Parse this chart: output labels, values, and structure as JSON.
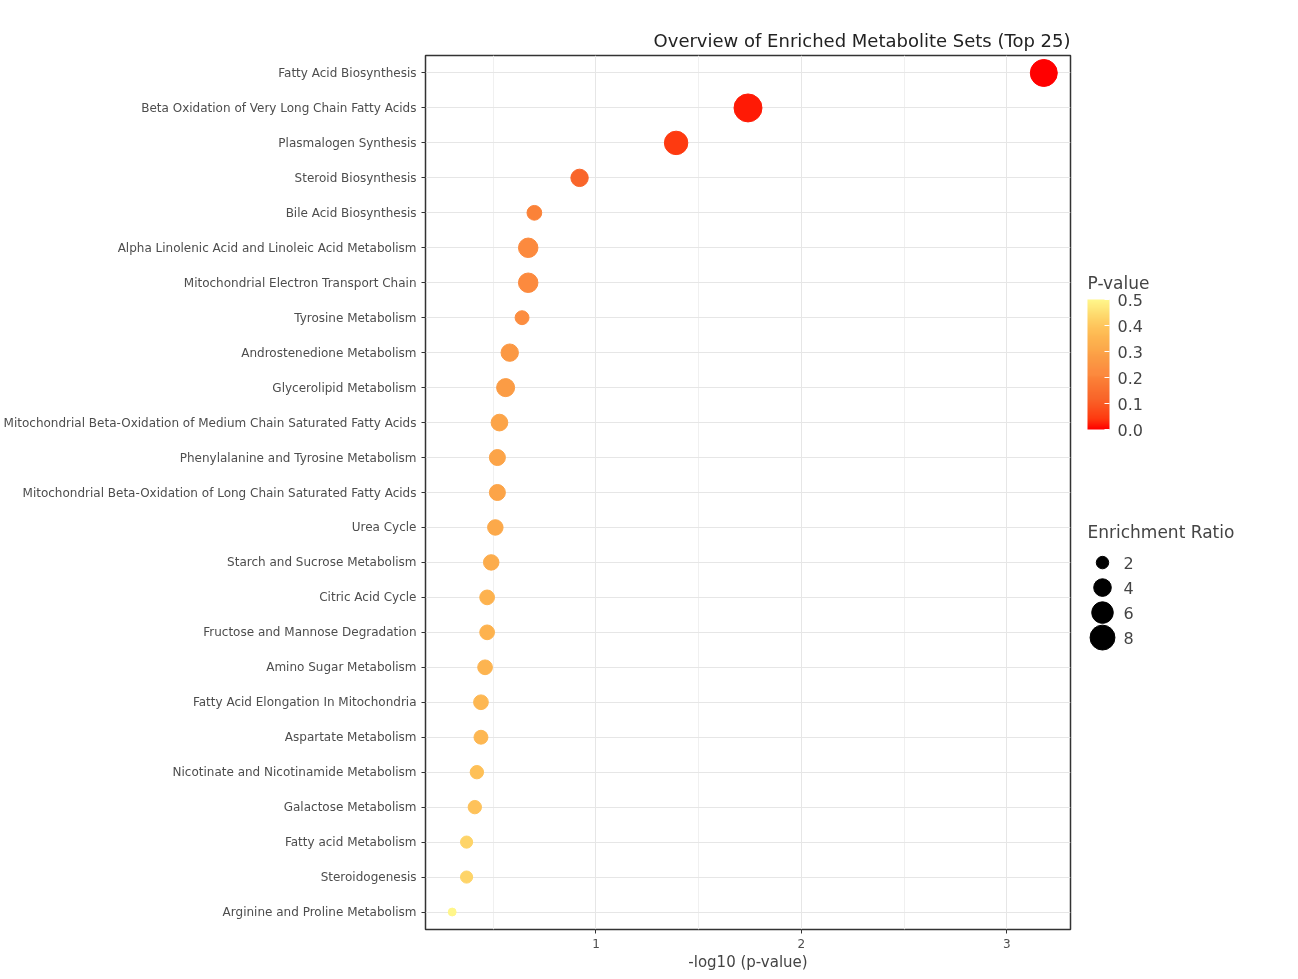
{
  "chart_data": {
    "type": "bubble",
    "orientation": "horizontal",
    "title": "Overview of Enriched Metabolite Sets (Top 25)",
    "xlabel": "-log10 (p-value)",
    "legend_title": "Enrichment Ratio",
    "clabel": "P-value",
    "categories": [
      "Fatty Acid Biosynthesis",
      "Beta Oxidation of Very Long Chain Fatty Acids",
      "Plasmalogen Synthesis",
      "Steroid Biosynthesis",
      "Bile Acid Biosynthesis",
      "Alpha Linolenic Acid and Linoleic Acid Metabolism",
      "Mitochondrial Electron Transport Chain",
      "Tyrosine Metabolism",
      "Androstenedione Metabolism",
      "Glycerolipid Metabolism",
      "Mitochondrial Beta-Oxidation of Medium Chain Saturated Fatty Acids",
      "Phenylalanine and Tyrosine Metabolism",
      "Mitochondrial Beta-Oxidation of Long Chain Saturated Fatty Acids",
      "Urea Cycle",
      "Starch and Sucrose Metabolism",
      "Citric Acid Cycle",
      "Fructose and Mannose Degradation",
      "Amino Sugar Metabolism",
      "Fatty Acid Elongation In Mitochondria",
      "Aspartate Metabolism",
      "Nicotinate and Nicotinamide Metabolism",
      "Galactose Metabolism",
      "Fatty acid Metabolism",
      "Steroidogenesis",
      "Arginine and Proline Metabolism"
    ],
    "values": [
      3.18,
      1.74,
      1.39,
      0.92,
      0.7,
      0.67,
      0.67,
      0.64,
      0.58,
      0.56,
      0.53,
      0.52,
      0.52,
      0.51,
      0.49,
      0.47,
      0.47,
      0.46,
      0.44,
      0.44,
      0.42,
      0.41,
      0.37,
      0.37,
      0.3
    ],
    "sizes": [
      9.4,
      10.1,
      7.1,
      3.9,
      2.8,
      4.9,
      4.9,
      2.5,
      3.9,
      4.2,
      3.6,
      3.3,
      3.3,
      3.1,
      3.1,
      2.8,
      2.8,
      2.8,
      2.8,
      2.5,
      2.3,
      2.3,
      1.9,
      1.9,
      0.8
    ],
    "cvalues": [
      0.0007,
      0.018,
      0.041,
      0.12,
      0.2,
      0.21,
      0.21,
      0.23,
      0.26,
      0.28,
      0.3,
      0.3,
      0.3,
      0.31,
      0.32,
      0.34,
      0.34,
      0.35,
      0.36,
      0.36,
      0.38,
      0.39,
      0.43,
      0.43,
      0.5
    ],
    "colors": [
      "#ff0000",
      "#ff1a05",
      "#fe3a10",
      "#f9652a",
      "#fb8238",
      "#fc8a3e",
      "#fc8a3e",
      "#fc8d40",
      "#fb9843",
      "#fb9c45",
      "#fca448",
      "#fca448",
      "#fca448",
      "#fca94a",
      "#fcac4c",
      "#fdb24e",
      "#fdb24e",
      "#fdb450",
      "#fdb752",
      "#fdb752",
      "#fec057",
      "#fec25a",
      "#fed468",
      "#fed468",
      "#fff68a"
    ],
    "size_legend": [
      2,
      4,
      6,
      8
    ],
    "clim": [
      0,
      0.5
    ],
    "cticks": [
      {
        "value": 0,
        "label": "0.0"
      },
      0.1,
      0.2,
      0.3,
      0.4,
      0.5
    ],
    "xlim": [
      0.17,
      3.31
    ],
    "xticks": [
      1,
      2,
      3
    ],
    "grid": true
  }
}
